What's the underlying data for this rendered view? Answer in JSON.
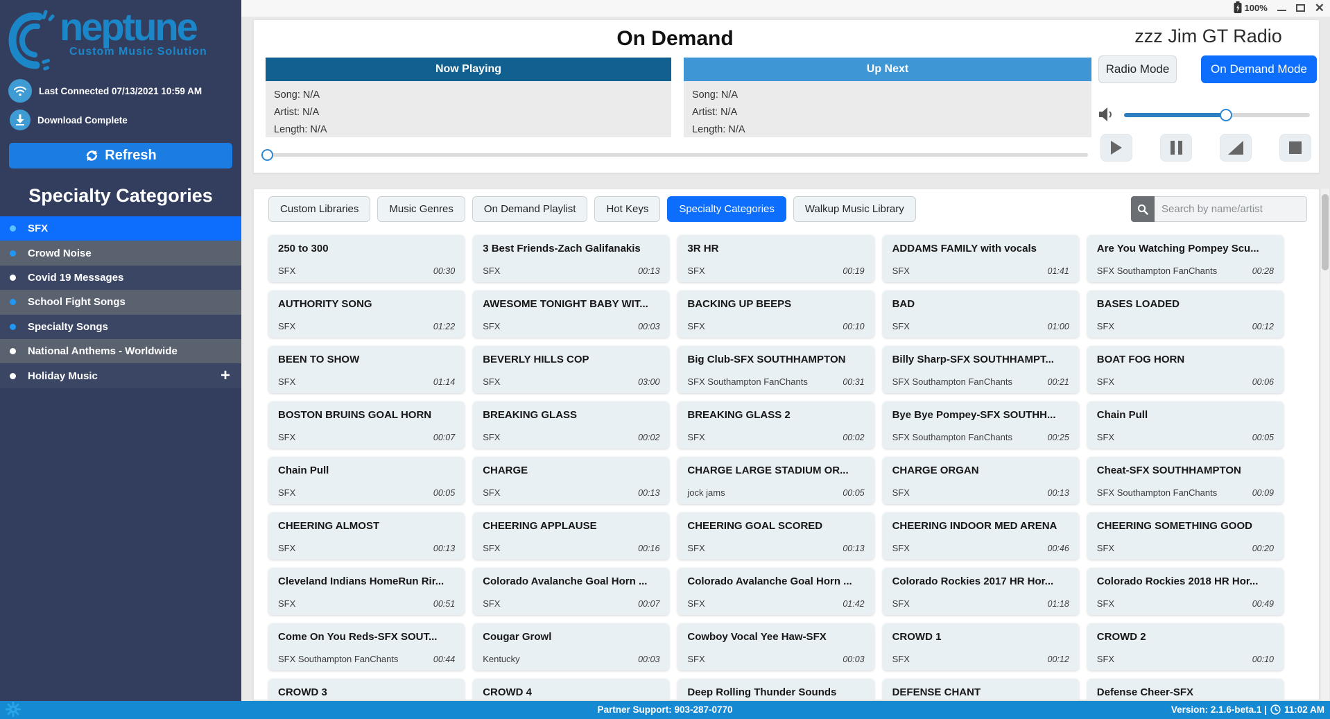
{
  "window": {
    "battery_label": "100%",
    "controls": {
      "minimize": "minimize",
      "maximize": "maximize",
      "close": "close"
    }
  },
  "sidebar": {
    "logo_title": "neptune",
    "logo_subtitle": "Custom Music Solution",
    "brand_color": "#1b87c9",
    "status": [
      {
        "icon": "wifi-icon",
        "label": "Last Connected 07/13/2021 10:59 AM"
      },
      {
        "icon": "download-icon",
        "label": "Download Complete"
      }
    ],
    "refresh_label": "Refresh",
    "section_title": "Specialty Categories",
    "categories": [
      {
        "label": "SFX",
        "active": true,
        "row": "blue",
        "dot": "#5bc0ff"
      },
      {
        "label": "Crowd Noise",
        "row": "gray",
        "dot": "#2196f3"
      },
      {
        "label": "Covid 19 Messages",
        "row": "navy",
        "dot": "#ffffff"
      },
      {
        "label": "School Fight Songs",
        "row": "gray",
        "dot": "#2196f3"
      },
      {
        "label": "Specialty Songs",
        "row": "navy",
        "dot": "#2196f3"
      },
      {
        "label": "National Anthems - Worldwide",
        "row": "gray",
        "dot": "#ffffff"
      },
      {
        "label": "Holiday Music",
        "row": "navy",
        "dot": "#ffffff",
        "expand": "+"
      }
    ]
  },
  "header": {
    "title": "On Demand",
    "station": "zzz Jim GT Radio",
    "now_playing": {
      "title": "Now Playing",
      "header_color": "#11608f",
      "song": "Song: N/A",
      "artist": "Artist: N/A",
      "length": "Length: N/A"
    },
    "up_next": {
      "title": "Up Next",
      "header_color": "#3e97d4",
      "song": "Song: N/A",
      "artist": "Artist: N/A",
      "length": "Length: N/A"
    },
    "radio_mode_label": "Radio Mode",
    "on_demand_mode_label": "On Demand Mode",
    "volume_percent": 55,
    "seek_percent": 0,
    "transport_icons": [
      "play-icon",
      "pause-icon",
      "fade-icon",
      "stop-icon"
    ]
  },
  "tabs": [
    {
      "label": "Custom Libraries",
      "active": false
    },
    {
      "label": "Music Genres",
      "active": false
    },
    {
      "label": "On Demand Playlist",
      "active": false
    },
    {
      "label": "Hot Keys",
      "active": false
    },
    {
      "label": "Specialty Categories",
      "active": true
    },
    {
      "label": "Walkup Music Library",
      "active": false
    }
  ],
  "search": {
    "placeholder": "Search by name/artist",
    "icon": "search-icon"
  },
  "library": {
    "cards": [
      {
        "title": "250 to 300",
        "subtitle": "SFX",
        "duration": "00:30"
      },
      {
        "title": "3 Best Friends-Zach Galifanakis",
        "subtitle": "SFX",
        "duration": "00:13"
      },
      {
        "title": "3R HR",
        "subtitle": "SFX",
        "duration": "00:19"
      },
      {
        "title": "ADDAMS FAMILY with vocals",
        "subtitle": "SFX",
        "duration": "01:41"
      },
      {
        "title": "Are You Watching Pompey Scu...",
        "subtitle": "SFX Southampton FanChants",
        "duration": "00:28"
      },
      {
        "title": "AUTHORITY SONG",
        "subtitle": "SFX",
        "duration": "01:22"
      },
      {
        "title": "AWESOME TONIGHT BABY WIT...",
        "subtitle": "SFX",
        "duration": "00:03"
      },
      {
        "title": "BACKING UP BEEPS",
        "subtitle": "SFX",
        "duration": "00:10"
      },
      {
        "title": "BAD",
        "subtitle": "SFX",
        "duration": "01:00"
      },
      {
        "title": "BASES LOADED",
        "subtitle": "SFX",
        "duration": "00:12"
      },
      {
        "title": "BEEN TO SHOW",
        "subtitle": "SFX",
        "duration": "01:14"
      },
      {
        "title": "BEVERLY HILLS COP",
        "subtitle": "SFX",
        "duration": "03:00"
      },
      {
        "title": "Big Club-SFX SOUTHHAMPTON",
        "subtitle": "SFX Southampton FanChants",
        "duration": "00:31"
      },
      {
        "title": "Billy Sharp-SFX SOUTHHAMPT...",
        "subtitle": "SFX Southampton FanChants",
        "duration": "00:21"
      },
      {
        "title": "BOAT FOG HORN",
        "subtitle": "SFX",
        "duration": "00:06"
      },
      {
        "title": "BOSTON BRUINS GOAL HORN",
        "subtitle": "SFX",
        "duration": "00:07"
      },
      {
        "title": "BREAKING GLASS",
        "subtitle": "SFX",
        "duration": "00:02"
      },
      {
        "title": "BREAKING GLASS 2",
        "subtitle": "SFX",
        "duration": "00:02"
      },
      {
        "title": "Bye Bye Pompey-SFX SOUTHH...",
        "subtitle": "SFX Southampton FanChants",
        "duration": "00:25"
      },
      {
        "title": "Chain Pull",
        "subtitle": "SFX",
        "duration": "00:05"
      },
      {
        "title": "Chain Pull",
        "subtitle": "SFX",
        "duration": "00:05"
      },
      {
        "title": "CHARGE",
        "subtitle": "SFX",
        "duration": "00:13"
      },
      {
        "title": "CHARGE LARGE STADIUM OR...",
        "subtitle": "jock jams",
        "duration": "00:05"
      },
      {
        "title": "CHARGE ORGAN",
        "subtitle": "SFX",
        "duration": "00:13"
      },
      {
        "title": "Cheat-SFX SOUTHHAMPTON",
        "subtitle": "SFX Southampton FanChants",
        "duration": "00:09"
      },
      {
        "title": "CHEERING ALMOST",
        "subtitle": "SFX",
        "duration": "00:13"
      },
      {
        "title": "CHEERING APPLAUSE",
        "subtitle": "SFX",
        "duration": "00:16"
      },
      {
        "title": "CHEERING GOAL SCORED",
        "subtitle": "SFX",
        "duration": "00:13"
      },
      {
        "title": "CHEERING INDOOR MED ARENA",
        "subtitle": "SFX",
        "duration": "00:46"
      },
      {
        "title": "CHEERING SOMETHING GOOD",
        "subtitle": "SFX",
        "duration": "00:20"
      },
      {
        "title": "Cleveland Indians HomeRun Rir...",
        "subtitle": "SFX",
        "duration": "00:51"
      },
      {
        "title": "Colorado Avalanche Goal Horn ...",
        "subtitle": "SFX",
        "duration": "00:07"
      },
      {
        "title": "Colorado Avalanche Goal Horn ...",
        "subtitle": "SFX",
        "duration": "01:42"
      },
      {
        "title": "Colorado Rockies 2017 HR Hor...",
        "subtitle": "SFX",
        "duration": "01:18"
      },
      {
        "title": "Colorado Rockies 2018 HR Hor...",
        "subtitle": "SFX",
        "duration": "00:49"
      },
      {
        "title": "Come On You Reds-SFX SOUT...",
        "subtitle": "SFX Southampton FanChants",
        "duration": "00:44"
      },
      {
        "title": "Cougar Growl",
        "subtitle": "Kentucky",
        "duration": "00:03"
      },
      {
        "title": "Cowboy Vocal Yee Haw-SFX",
        "subtitle": "SFX",
        "duration": "00:03"
      },
      {
        "title": "CROWD 1",
        "subtitle": "SFX",
        "duration": "00:12"
      },
      {
        "title": "CROWD 2",
        "subtitle": "SFX",
        "duration": "00:10"
      },
      {
        "title": "CROWD 3",
        "subtitle": "",
        "duration": ""
      },
      {
        "title": "CROWD 4",
        "subtitle": "",
        "duration": ""
      },
      {
        "title": "Deep Rolling Thunder Sounds",
        "subtitle": "",
        "duration": ""
      },
      {
        "title": "DEFENSE CHANT",
        "subtitle": "",
        "duration": ""
      },
      {
        "title": "Defense Cheer-SFX",
        "subtitle": "",
        "duration": ""
      }
    ]
  },
  "footer": {
    "support": "Partner Support: 903-287-0770",
    "version": "Version: 2.1.6-beta.1 |",
    "time": "11:02 AM",
    "bar_color": "#1689d3"
  }
}
